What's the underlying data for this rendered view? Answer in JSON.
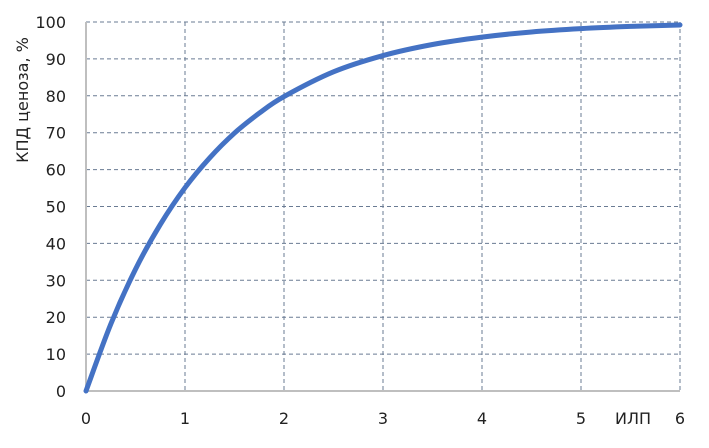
{
  "chart_data": {
    "type": "line",
    "title": "",
    "xlabel": "ИЛП",
    "ylabel": "КПД ценоза, %",
    "xlim": [
      0,
      6
    ],
    "ylim": [
      0,
      100
    ],
    "x_ticks": [
      "0",
      "1",
      "2",
      "3",
      "4",
      "5",
      "6"
    ],
    "y_ticks": [
      "0",
      "10",
      "20",
      "30",
      "40",
      "50",
      "60",
      "70",
      "80",
      "90",
      "100"
    ],
    "grid": true,
    "series_color": "#4472C4",
    "series": [
      {
        "x": [
          0,
          0.25,
          0.5,
          0.75,
          1,
          1.25,
          1.5,
          1.75,
          2,
          2.5,
          3,
          3.5,
          4,
          4.5,
          5,
          5.5,
          6
        ],
        "y": [
          0,
          18.1,
          33.0,
          45.1,
          55.1,
          63.2,
          69.9,
          75.3,
          79.8,
          86.5,
          90.9,
          93.9,
          95.9,
          97.3,
          98.2,
          98.8,
          99.2
        ]
      }
    ]
  }
}
